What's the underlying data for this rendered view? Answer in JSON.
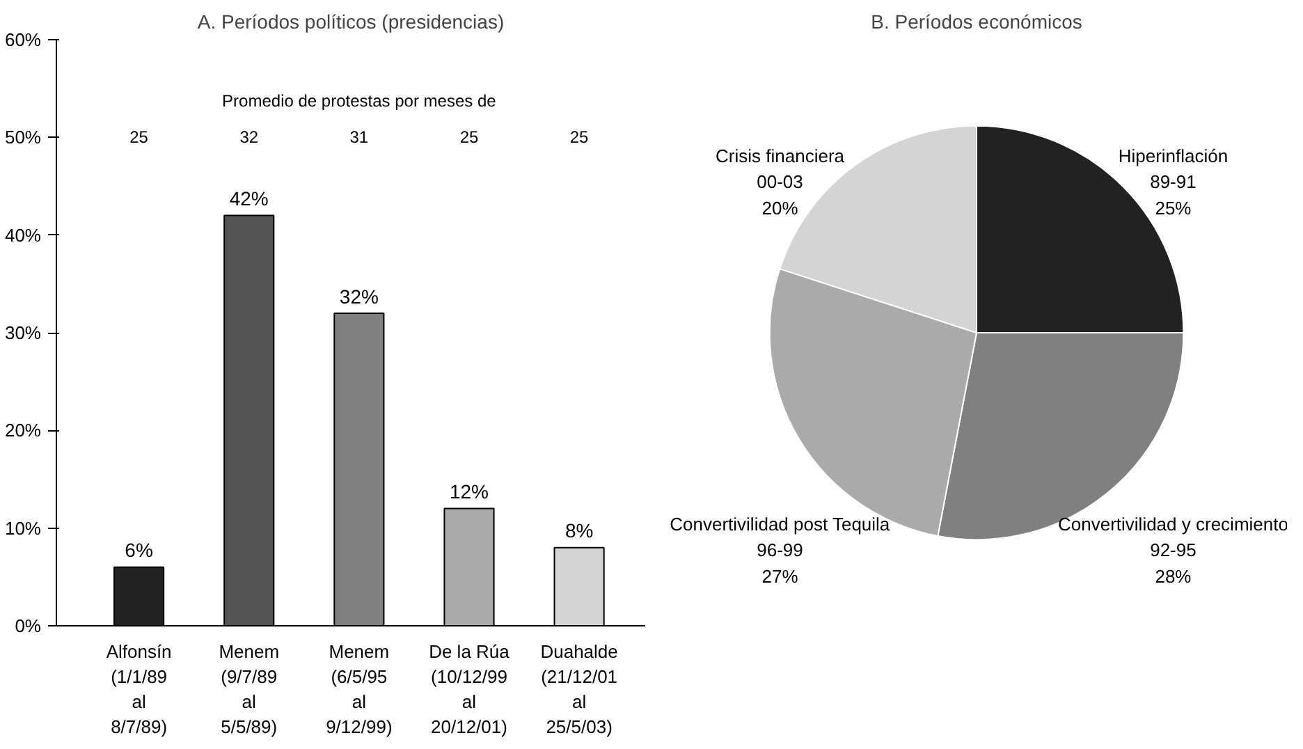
{
  "chart_data": [
    {
      "type": "bar",
      "title": "A. Períodos políticos (presidencias)",
      "categories": [
        "Alfonsín\n(1/1/89\nal\n8/7/89)",
        "Menem\n(9/7/89\nal\n5/5/89)",
        "Menem\n(6/5/95\nal\n9/12/99)",
        "De la Rúa\n(10/12/99\nal\n20/12/01)",
        "Duahalde\n(21/12/01\nal\n25/5/03)"
      ],
      "values": [
        6,
        42,
        32,
        12,
        8
      ],
      "colors": [
        "#222222",
        "#555555",
        "#808080",
        "#aaaaaa",
        "#d4d4d4"
      ],
      "value_labels": [
        "6%",
        "42%",
        "32%",
        "12%",
        "8%"
      ],
      "ylim": [
        0,
        60
      ],
      "yticks": [
        {
          "value": 0,
          "label": "0%"
        },
        {
          "value": 10,
          "label": "10%"
        },
        {
          "value": 20,
          "label": "20%"
        },
        {
          "value": 30,
          "label": "30%"
        },
        {
          "value": 40,
          "label": "40%"
        },
        {
          "value": 50,
          "label": "50%"
        },
        {
          "value": 60,
          "label": "60%"
        }
      ],
      "annotations": [
        "Promedio de protestas por meses de",
        "25",
        "32",
        "31",
        "25",
        "25"
      ],
      "grid": false
    },
    {
      "type": "pie",
      "title": "B. Períodos económicos",
      "categories": [
        "Hiperinflación\n89-91",
        "Convertivilidad y crecimiento\n92-95",
        "Convertivilidad post Tequila\n96-99",
        "Crisis financiera\n00-03"
      ],
      "values": [
        25,
        28,
        27,
        20
      ],
      "colors": [
        "#222222",
        "#808080",
        "#aaaaaa",
        "#d4d4d4"
      ],
      "value_labels": [
        "25%",
        "28%",
        "27%",
        "20%"
      ]
    }
  ]
}
